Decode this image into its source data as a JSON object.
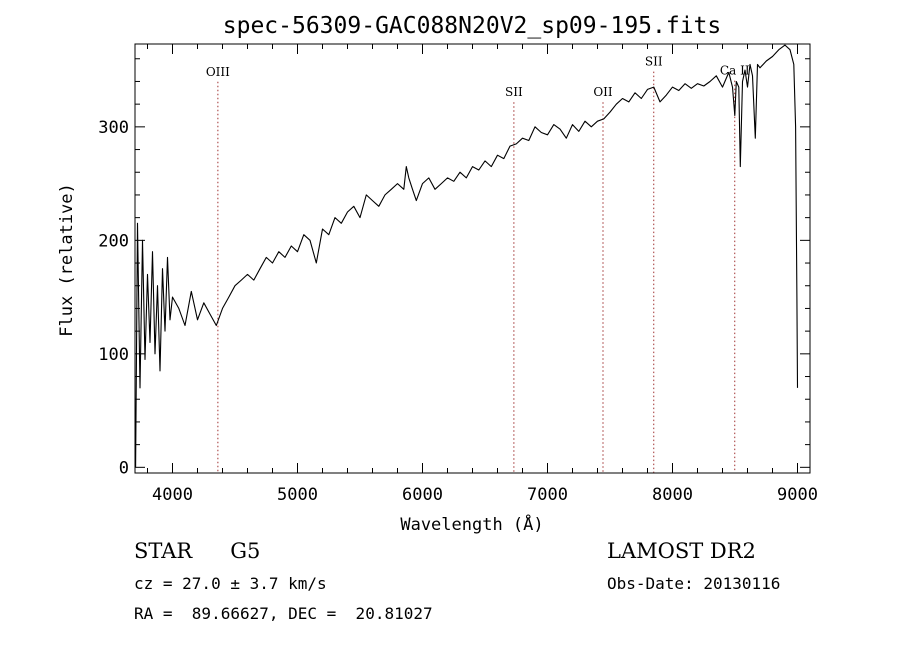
{
  "chart_data": {
    "type": "line",
    "title": "spec-56309-GAC088N20V2_sp09-195.fits",
    "xlabel": "Wavelength (Å)",
    "ylabel": "Flux (relative)",
    "xlim": [
      3700,
      9100
    ],
    "ylim": [
      -5,
      373
    ],
    "xticks": [
      4000,
      5000,
      6000,
      7000,
      8000,
      9000
    ],
    "yticks": [
      0,
      100,
      200,
      300
    ],
    "grid": false,
    "line_color": "#000000",
    "marker_color": "#a03030",
    "lines": [
      {
        "label": "OIII",
        "x": 4363,
        "label_y": 345
      },
      {
        "label": "SII",
        "x": 6731,
        "label_y": 327
      },
      {
        "label": "OII",
        "x": 7444,
        "label_y": 327
      },
      {
        "label": "SII",
        "x": 7850,
        "label_y": 354
      },
      {
        "label": "Ca II",
        "x": 8498,
        "label_y": 346
      }
    ],
    "series": [
      {
        "x": [
          3705,
          3720,
          3740,
          3760,
          3780,
          3800,
          3820,
          3840,
          3860,
          3880,
          3900,
          3920,
          3940,
          3960,
          3980,
          4000,
          4050,
          4100,
          4150,
          4200,
          4250,
          4300,
          4350,
          4400,
          4450,
          4500,
          4550,
          4600,
          4650,
          4700,
          4750,
          4800,
          4850,
          4900,
          4950,
          5000,
          5050,
          5100,
          5150,
          5200,
          5250,
          5300,
          5350,
          5400,
          5450,
          5500,
          5550,
          5600,
          5650,
          5700,
          5750,
          5800,
          5850,
          5870,
          5890,
          5920,
          5950,
          6000,
          6050,
          6100,
          6150,
          6200,
          6250,
          6300,
          6350,
          6400,
          6450,
          6500,
          6550,
          6600,
          6650,
          6700,
          6750,
          6800,
          6850,
          6900,
          6950,
          7000,
          7050,
          7100,
          7150,
          7200,
          7250,
          7300,
          7350,
          7400,
          7450,
          7500,
          7550,
          7600,
          7650,
          7700,
          7750,
          7800,
          7850,
          7900,
          7950,
          8000,
          8050,
          8100,
          8150,
          8200,
          8250,
          8300,
          8350,
          8400,
          8450,
          8480,
          8498,
          8510,
          8530,
          8542,
          8560,
          8580,
          8600,
          8620,
          8640,
          8662,
          8680,
          8700,
          8750,
          8800,
          8850,
          8900,
          8940,
          8970,
          8985,
          8995,
          9000
        ],
        "values": [
          0,
          215,
          70,
          200,
          95,
          170,
          110,
          190,
          100,
          160,
          85,
          175,
          120,
          185,
          130,
          150,
          140,
          125,
          155,
          130,
          145,
          135,
          125,
          140,
          150,
          160,
          165,
          170,
          165,
          175,
          185,
          180,
          190,
          185,
          195,
          190,
          205,
          200,
          180,
          210,
          205,
          220,
          215,
          225,
          230,
          220,
          240,
          235,
          230,
          240,
          245,
          250,
          245,
          265,
          255,
          245,
          235,
          250,
          255,
          245,
          250,
          255,
          252,
          260,
          255,
          265,
          262,
          270,
          265,
          275,
          272,
          283,
          285,
          290,
          288,
          300,
          295,
          293,
          302,
          298,
          290,
          302,
          296,
          305,
          300,
          305,
          307,
          313,
          320,
          325,
          322,
          330,
          325,
          333,
          335,
          322,
          328,
          335,
          332,
          338,
          334,
          338,
          336,
          340,
          345,
          335,
          348,
          335,
          310,
          340,
          335,
          265,
          340,
          350,
          335,
          355,
          345,
          290,
          355,
          352,
          358,
          362,
          368,
          372,
          368,
          355,
          300,
          150,
          70
        ]
      }
    ]
  },
  "info": {
    "star_label": "STAR",
    "spectral_type": "G5",
    "cz": "cz = 27.0 ± 3.7 km/s",
    "ra_dec": "RA =  89.66627, DEC =  20.81027",
    "survey": "LAMOST DR2",
    "obs_date": "Obs-Date: 20130116"
  }
}
